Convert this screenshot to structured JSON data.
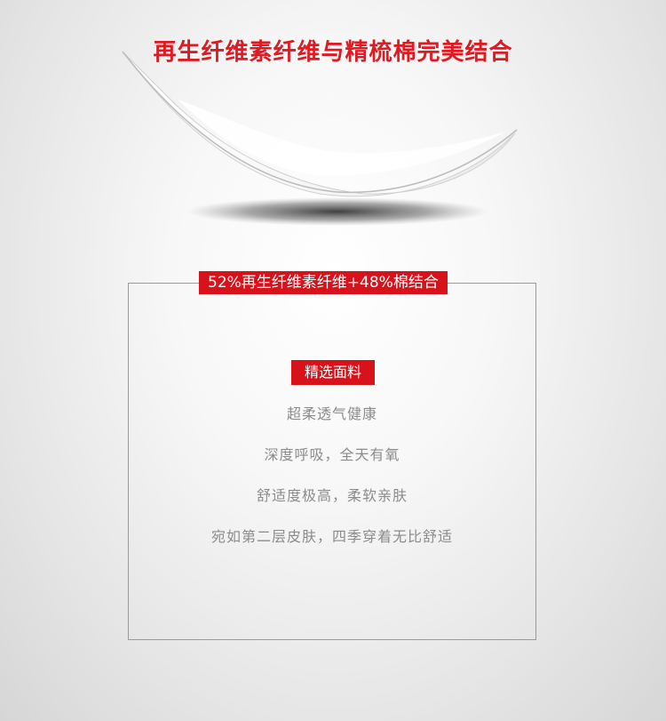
{
  "headline": "再生纤维素纤维与精梳棉完美结合",
  "ratio_badge": "52%再生纤维素纤维+48%棉结合",
  "section_badge": "精选面料",
  "features": [
    "超柔透气健康",
    "深度呼吸，全天有氧",
    "舒适度极高，柔软亲肤",
    "宛如第二层皮肤，四季穿着无比舒适"
  ],
  "colors": {
    "accent_red": "#e01a22",
    "badge_red": "#d8121b",
    "feature_text": "#8b8b8b",
    "box_border": "#9a9a9a"
  }
}
